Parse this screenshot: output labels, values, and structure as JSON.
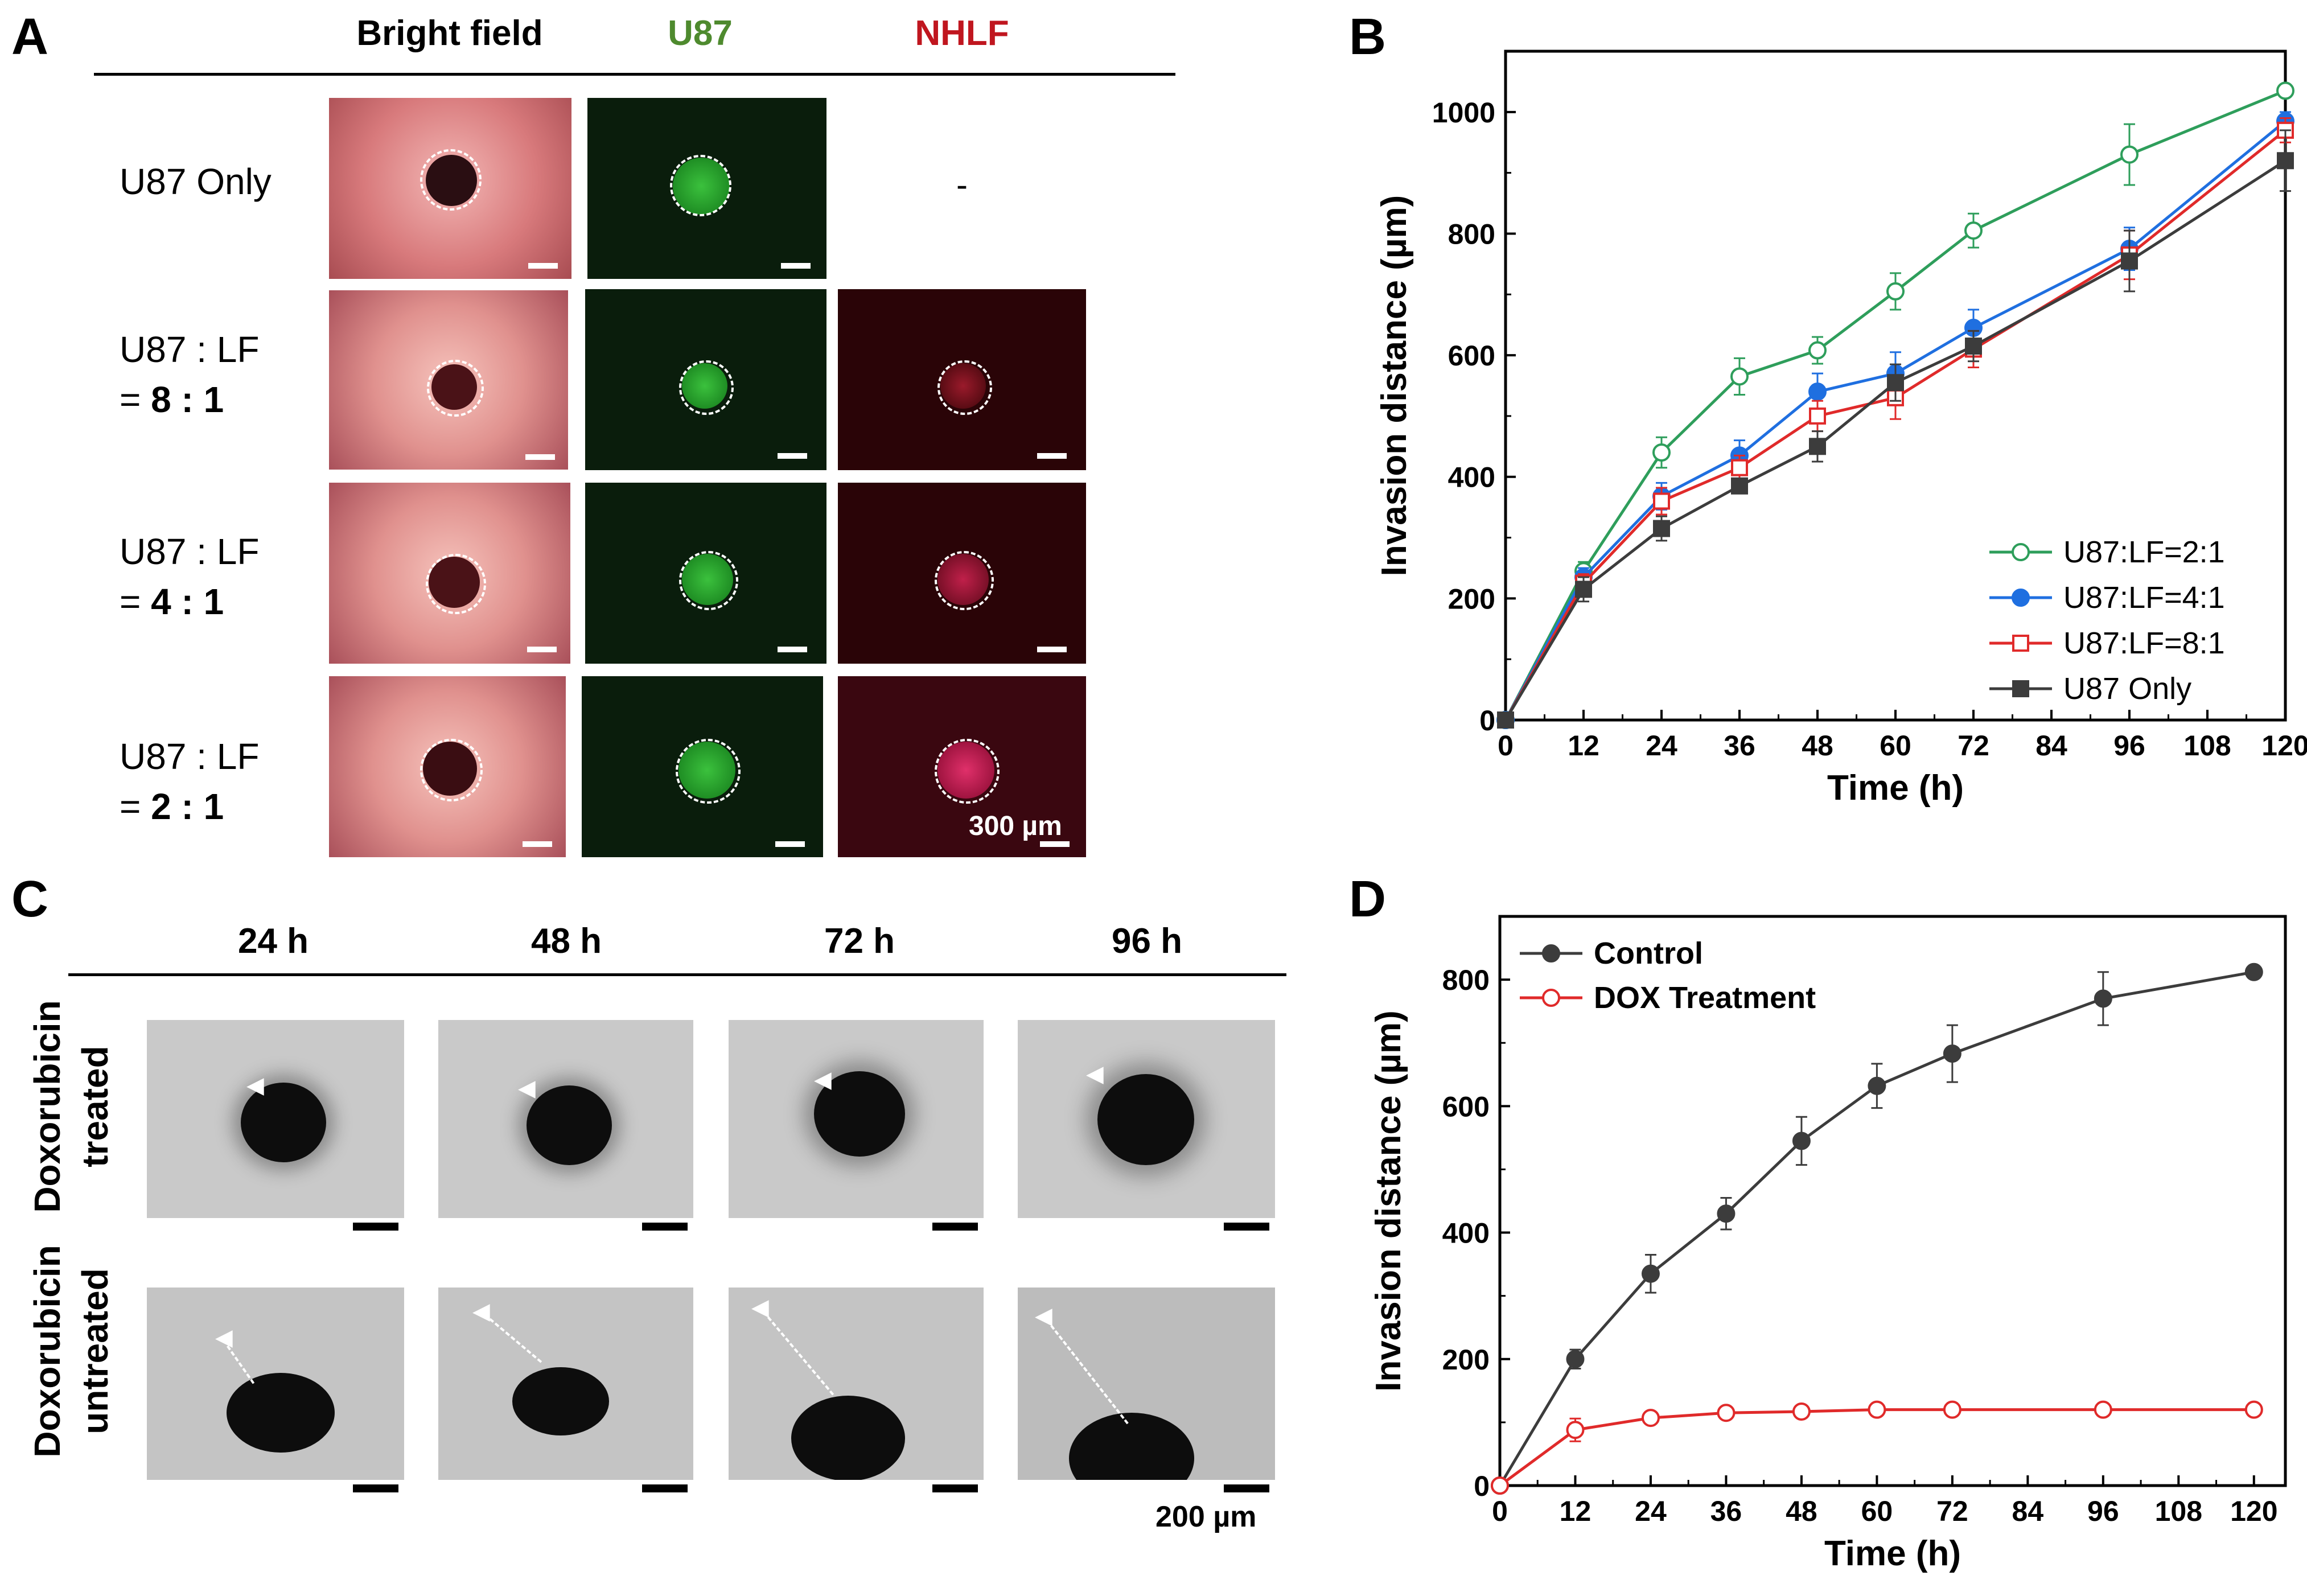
{
  "panels": {
    "a": "A",
    "b": "B",
    "c": "C",
    "d": "D"
  },
  "panel_a": {
    "columns": [
      "Bright field",
      "U87",
      "NHLF"
    ],
    "column_colors": [
      "#000000",
      "#4e8a2e",
      "#c0161f"
    ],
    "rows": [
      {
        "line1": "U87 Only",
        "line2_prefix": "",
        "line2_bold": ""
      },
      {
        "line1": "U87 : LF",
        "line2_prefix": "= ",
        "line2_bold": "8 : 1"
      },
      {
        "line1": "U87 : LF",
        "line2_prefix": "= ",
        "line2_bold": "4 : 1"
      },
      {
        "line1": "U87 : LF",
        "line2_prefix": "= ",
        "line2_bold": "2 : 1"
      }
    ],
    "missing_cell": "-",
    "scale_bar": "300 µm"
  },
  "panel_c": {
    "columns": [
      "24 h",
      "48 h",
      "72 h",
      "96 h"
    ],
    "row_labels": [
      {
        "line1": "Doxorubicin",
        "line2": "treated"
      },
      {
        "line1": "Doxorubicin",
        "line2": "untreated"
      }
    ],
    "scale_bar": "200 µm"
  },
  "chart_data": [
    {
      "type": "line",
      "panel": "B",
      "xlabel": "Time (h)",
      "ylabel": "Invasion distance (µm)",
      "xlim": [
        0,
        120
      ],
      "ylim": [
        0,
        1100
      ],
      "xticks": [
        0,
        12,
        24,
        36,
        48,
        60,
        72,
        84,
        96,
        108,
        120
      ],
      "yticks": [
        0,
        200,
        400,
        600,
        800,
        1000
      ],
      "legend_position": "bottom-right",
      "x": [
        0,
        12,
        24,
        36,
        48,
        60,
        72,
        96,
        120
      ],
      "series": [
        {
          "name": "U87:LF=2:1",
          "color": "#2e9e5b",
          "marker": "circle",
          "filled": false,
          "values": [
            0,
            245,
            440,
            565,
            608,
            705,
            805,
            930,
            1035
          ],
          "errors": [
            0,
            15,
            25,
            30,
            22,
            30,
            28,
            50,
            10
          ]
        },
        {
          "name": "U87:LF=4:1",
          "color": "#1f6fe0",
          "marker": "circle",
          "filled": true,
          "values": [
            0,
            235,
            368,
            435,
            540,
            570,
            645,
            775,
            985
          ],
          "errors": [
            0,
            15,
            22,
            25,
            30,
            35,
            30,
            35,
            15
          ]
        },
        {
          "name": "U87:LF=8:1",
          "color": "#e02a2a",
          "marker": "square",
          "filled": false,
          "values": [
            0,
            225,
            360,
            415,
            500,
            530,
            610,
            765,
            970
          ],
          "errors": [
            0,
            15,
            22,
            20,
            25,
            35,
            30,
            40,
            20
          ]
        },
        {
          "name": "U87 Only",
          "color": "#3c3c3c",
          "marker": "square",
          "filled": true,
          "values": [
            0,
            215,
            315,
            385,
            450,
            555,
            615,
            755,
            920
          ],
          "errors": [
            0,
            20,
            20,
            10,
            25,
            30,
            25,
            50,
            50
          ]
        }
      ]
    },
    {
      "type": "line",
      "panel": "D",
      "xlabel": "Time (h)",
      "ylabel": "Invasion distance (µm)",
      "xlim": [
        0,
        125
      ],
      "ylim": [
        0,
        900
      ],
      "xticks": [
        0,
        12,
        24,
        36,
        48,
        60,
        72,
        84,
        96,
        108,
        120
      ],
      "yticks": [
        0,
        200,
        400,
        600,
        800
      ],
      "legend_position": "top-left",
      "x": [
        0,
        12,
        24,
        36,
        48,
        60,
        72,
        96,
        120
      ],
      "series": [
        {
          "name": "Control",
          "color": "#3c3c3c",
          "marker": "circle",
          "filled": true,
          "values": [
            0,
            200,
            335,
            430,
            545,
            632,
            683,
            770,
            812
          ],
          "errors": [
            0,
            15,
            30,
            25,
            38,
            35,
            45,
            42,
            8
          ]
        },
        {
          "name": "DOX Treatment",
          "color": "#e02a2a",
          "marker": "circle",
          "filled": false,
          "values": [
            0,
            88,
            107,
            115,
            117,
            120,
            120,
            120,
            120
          ],
          "errors": [
            0,
            18,
            8,
            5,
            5,
            5,
            5,
            5,
            5
          ]
        }
      ]
    }
  ]
}
